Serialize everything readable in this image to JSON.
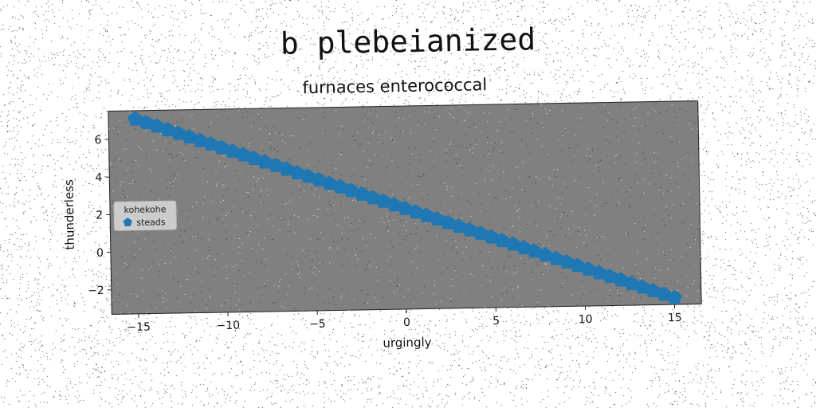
{
  "suptitle": "b plebeianized",
  "chart_data": {
    "type": "scatter",
    "title": "furnaces enterococcal",
    "xlabel": "urgingly",
    "ylabel": "thunderless",
    "xlim": [
      -16.5,
      16.5
    ],
    "ylim": [
      -3.3,
      7.5
    ],
    "xticks": [
      -15,
      -10,
      -5,
      0,
      5,
      10,
      15
    ],
    "xtick_labels": [
      "−15",
      "−10",
      "−5",
      "0",
      "5",
      "10",
      "15"
    ],
    "yticks": [
      -2,
      0,
      2,
      4,
      6
    ],
    "ytick_labels": [
      "−2",
      "0",
      "2",
      "4",
      "6"
    ],
    "grid": false,
    "background": "#808080",
    "legend": {
      "title": "kohekohe",
      "placement": "center-left"
    },
    "series": [
      {
        "name": "steads",
        "color": "#1f77b4",
        "marker": "pentagon",
        "x": [
          -15.0,
          -14.4,
          -13.8,
          -13.2,
          -12.6,
          -12.0,
          -11.4,
          -10.8,
          -10.2,
          -9.6,
          -9.0,
          -8.4,
          -7.8,
          -7.2,
          -6.6,
          -6.0,
          -5.4,
          -4.8,
          -4.2,
          -3.6,
          -3.0,
          -2.4,
          -1.8,
          -1.2,
          -0.6,
          0.0,
          0.6,
          1.2,
          1.8,
          2.4,
          3.0,
          3.6,
          4.2,
          4.8,
          5.4,
          6.0,
          6.6,
          7.2,
          7.8,
          8.4,
          9.0,
          9.6,
          10.2,
          10.8,
          11.4,
          12.0,
          12.6,
          13.2,
          13.8,
          14.4,
          15.0
        ],
        "y": [
          7.05,
          6.85,
          6.65,
          6.45,
          6.25,
          6.05,
          5.85,
          5.65,
          5.45,
          5.25,
          5.05,
          4.85,
          4.65,
          4.45,
          4.25,
          4.05,
          3.85,
          3.65,
          3.45,
          3.25,
          3.05,
          2.85,
          2.65,
          2.45,
          2.25,
          2.05,
          1.85,
          1.65,
          1.45,
          1.25,
          1.05,
          0.85,
          0.65,
          0.45,
          0.25,
          0.05,
          -0.15,
          -0.35,
          -0.55,
          -0.75,
          -0.95,
          -1.15,
          -1.35,
          -1.55,
          -1.75,
          -1.95,
          -2.15,
          -2.35,
          -2.55,
          -2.75,
          -2.95
        ]
      }
    ]
  }
}
